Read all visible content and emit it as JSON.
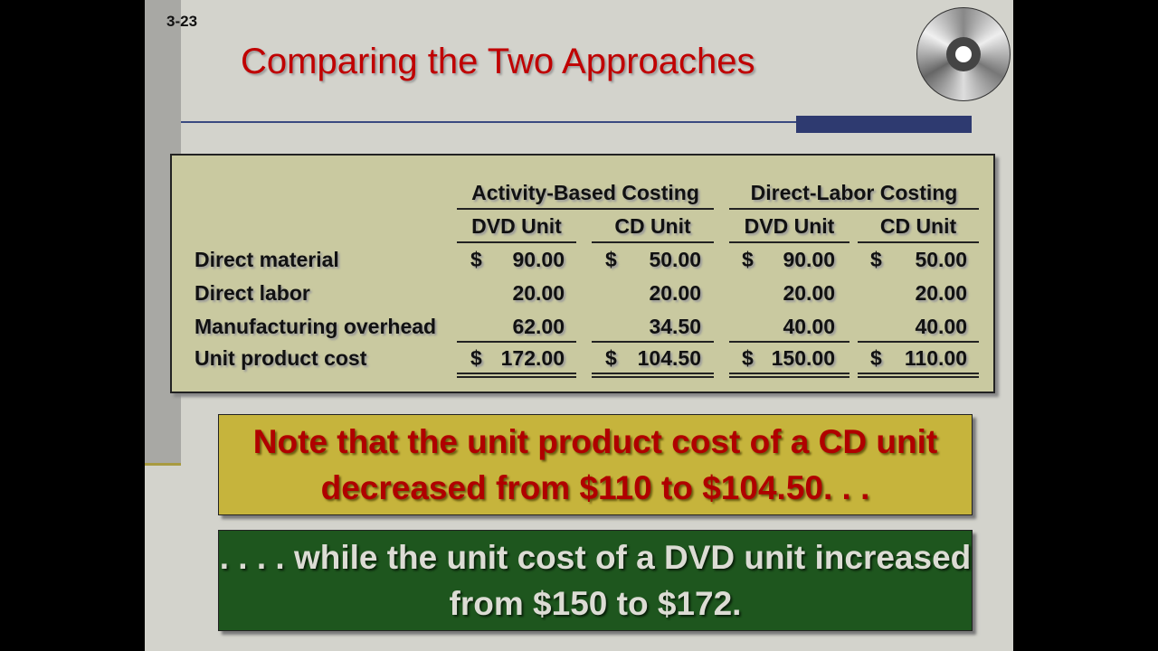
{
  "slide_number": "3-23",
  "title": "Comparing the Two Approaches",
  "icon": "cd-disc-icon",
  "table": {
    "group_headers": [
      "Activity-Based Costing",
      "Direct-Labor Costing"
    ],
    "column_headers": [
      "DVD Unit",
      "CD Unit",
      "DVD Unit",
      "CD Unit"
    ],
    "rows": [
      {
        "label": "Direct material",
        "dollar": true,
        "values": [
          "90.00",
          "50.00",
          "90.00",
          "50.00"
        ]
      },
      {
        "label": "Direct labor",
        "dollar": false,
        "values": [
          "20.00",
          "20.00",
          "20.00",
          "20.00"
        ]
      },
      {
        "label": "Manufacturing overhead",
        "dollar": false,
        "values": [
          "62.00",
          "34.50",
          "40.00",
          "40.00"
        ]
      },
      {
        "label": "Unit product cost",
        "dollar": true,
        "values": [
          "172.00",
          "104.50",
          "150.00",
          "110.00"
        ]
      }
    ],
    "currency_symbol": "$"
  },
  "note_yellow": "Note that the unit product cost of a CD unit decreased from $110 to $104.50. . .",
  "note_green": ". . . . while the unit cost of a DVD unit increased from $150 to $172.",
  "colors": {
    "title": "#c00000",
    "yellow_box": "#c6b43c",
    "green_box": "#1e561e",
    "table_bg": "#c9c9a0"
  }
}
